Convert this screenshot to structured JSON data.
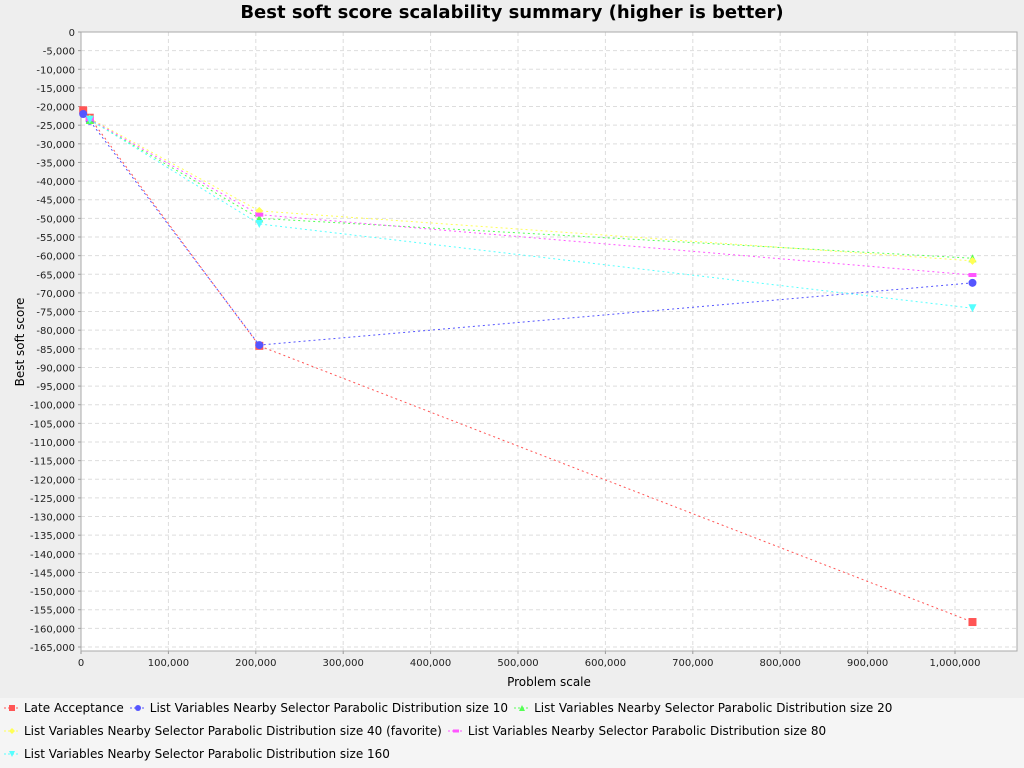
{
  "chart_data": {
    "type": "line",
    "title": "Best soft score scalability summary (higher is better)",
    "xlabel": "Problem scale",
    "ylabel": "Best soft score",
    "xlim": [
      0,
      1070000
    ],
    "ylim": [
      -166000,
      0
    ],
    "x_ticks": [
      0,
      100000,
      200000,
      300000,
      400000,
      500000,
      600000,
      700000,
      800000,
      900000,
      1000000
    ],
    "x_tick_labels": [
      "0",
      "100,000",
      "200,000",
      "300,000",
      "400,000",
      "500,000",
      "600,000",
      "700,000",
      "800,000",
      "900,000",
      "1,000,000"
    ],
    "y_ticks": [
      0,
      -5000,
      -10000,
      -15000,
      -20000,
      -25000,
      -30000,
      -35000,
      -40000,
      -45000,
      -50000,
      -55000,
      -60000,
      -65000,
      -70000,
      -75000,
      -80000,
      -85000,
      -90000,
      -95000,
      -100000,
      -105000,
      -110000,
      -115000,
      -120000,
      -125000,
      -130000,
      -135000,
      -140000,
      -145000,
      -150000,
      -155000,
      -160000,
      -165000
    ],
    "y_tick_labels": [
      "0",
      "-5,000",
      "-10,000",
      "-15,000",
      "-20,000",
      "-25,000",
      "-30,000",
      "-35,000",
      "-40,000",
      "-45,000",
      "-50,000",
      "-55,000",
      "-60,000",
      "-65,000",
      "-70,000",
      "-75,000",
      "-80,000",
      "-85,000",
      "-90,000",
      "-95,000",
      "-100,000",
      "-105,000",
      "-110,000",
      "-115,000",
      "-120,000",
      "-125,000",
      "-130,000",
      "-135,000",
      "-140,000",
      "-145,000",
      "-150,000",
      "-155,000",
      "-160,000",
      "-165,000"
    ],
    "grid": true,
    "legend_position": "bottom",
    "series": [
      {
        "name": "Late Acceptance",
        "color": "#ff5555",
        "marker": "square",
        "x": [
          2500,
          10000,
          204000,
          1020000
        ],
        "y": [
          -21000,
          -23000,
          -84200,
          -158300
        ]
      },
      {
        "name": "List Variables Nearby Selector Parabolic Distribution size 10",
        "color": "#5555ff",
        "marker": "circle",
        "x": [
          2500,
          10000,
          204000,
          1020000
        ],
        "y": [
          -22000,
          -23800,
          -84000,
          -67300
        ]
      },
      {
        "name": "List Variables Nearby Selector Parabolic Distribution size 20",
        "color": "#55ff55",
        "marker": "triangle-up",
        "x": [
          10000,
          204000,
          1020000
        ],
        "y": [
          -23600,
          -50000,
          -60700
        ]
      },
      {
        "name": "List Variables Nearby Selector Parabolic Distribution size 40 (favorite)",
        "color": "#ffff55",
        "marker": "diamond",
        "x": [
          10000,
          204000,
          1020000
        ],
        "y": [
          -23200,
          -48000,
          -61400
        ]
      },
      {
        "name": "List Variables Nearby Selector Parabolic Distribution size 80",
        "color": "#ff55ff",
        "marker": "rect-wide",
        "x": [
          10000,
          204000,
          1020000
        ],
        "y": [
          -23400,
          -49000,
          -65200
        ]
      },
      {
        "name": "List Variables Nearby Selector Parabolic Distribution size 160",
        "color": "#55ffff",
        "marker": "triangle-down",
        "x": [
          10000,
          204000,
          1020000
        ],
        "y": [
          -23500,
          -51500,
          -74100
        ]
      }
    ]
  }
}
